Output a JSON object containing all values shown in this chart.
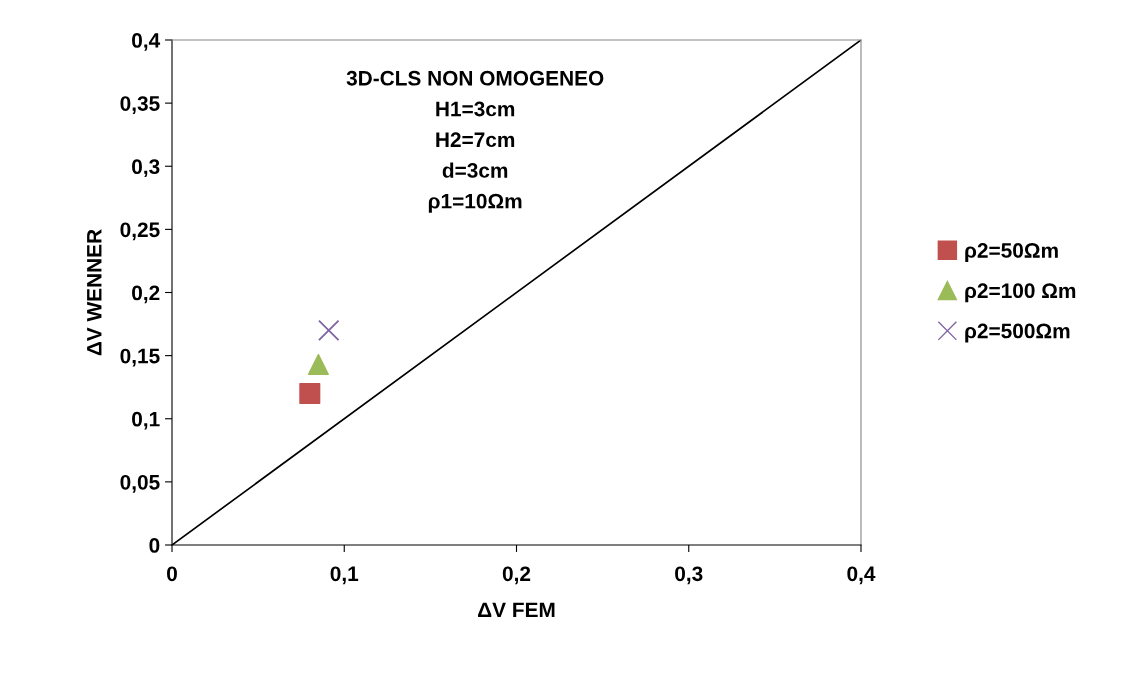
{
  "chart_data": {
    "type": "scatter",
    "xlabel": "ΔV FEM",
    "ylabel": "ΔV WENNER",
    "annotations": [
      "3D-CLS NON OMOGENEO\nH1=3cm\nH2=7cm\nd=3cm\nρ1=10Ωm"
    ],
    "series": [
      {
        "type": "line",
        "color": "#000000",
        "x": [
          0,
          0.4
        ],
        "values": [
          0,
          0.4
        ],
        "marker": "none",
        "line_style": "solid"
      },
      {
        "name": "ρ2=50Ωm",
        "color": "#c0504d",
        "x": [
          0.08
        ],
        "values": [
          0.12
        ],
        "marker": "square"
      },
      {
        "name": "ρ2=100 Ωm",
        "color": "#9bbb59",
        "x": [
          0.085
        ],
        "values": [
          0.143
        ],
        "marker": "triangle"
      },
      {
        "name": "ρ2=500Ωm",
        "color": "#8064a2",
        "x": [
          0.091
        ],
        "values": [
          0.17
        ],
        "marker": "cross"
      }
    ],
    "xlim": [
      0,
      0.4
    ],
    "xticks": [
      {
        "value": 0,
        "label": "0"
      },
      {
        "value": 0.1,
        "label": "0,1"
      },
      {
        "value": 0.2,
        "label": "0,2"
      },
      {
        "value": 0.3,
        "label": "0,3"
      },
      {
        "value": 0.4,
        "label": "0,4"
      }
    ],
    "ylim": [
      0,
      0.4
    ],
    "yticks": [
      {
        "value": 0,
        "label": "0"
      },
      {
        "value": 0.05,
        "label": "0,05"
      },
      {
        "value": 0.1,
        "label": "0,1"
      },
      {
        "value": 0.15,
        "label": "0,15"
      },
      {
        "value": 0.2,
        "label": "0,2"
      },
      {
        "value": 0.25,
        "label": "0,25"
      },
      {
        "value": 0.3,
        "label": "0,3"
      },
      {
        "value": 0.35,
        "label": "0,35"
      },
      {
        "value": 0.4,
        "label": "0,4"
      }
    ],
    "legend": "right",
    "grid": false
  }
}
